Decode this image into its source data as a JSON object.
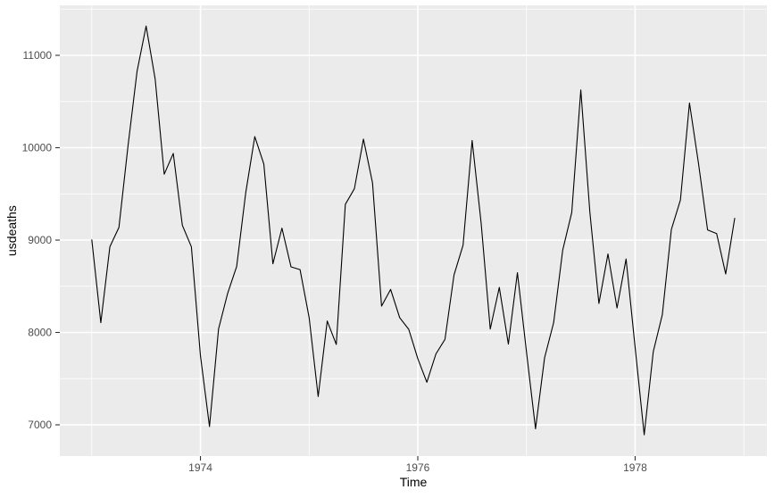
{
  "figure": {
    "x_axis_title": "Time",
    "y_axis_title": "usdeaths"
  },
  "chart_data": {
    "type": "line",
    "title": "",
    "xlabel": "Time",
    "ylabel": "usdeaths",
    "x_start": 1973,
    "x_frequency_per_year": 12,
    "series": [
      {
        "name": "usdeaths",
        "values": [
          9007,
          8106,
          8928,
          9137,
          10017,
          10826,
          11317,
          10744,
          9713,
          9938,
          9161,
          8927,
          7750,
          6981,
          8038,
          8422,
          8714,
          9512,
          10120,
          9823,
          8743,
          9129,
          8710,
          8680,
          8162,
          7306,
          8124,
          7870,
          9387,
          9556,
          10093,
          9620,
          8285,
          8466,
          8160,
          8034,
          7717,
          7461,
          7767,
          7925,
          8623,
          8945,
          10078,
          9179,
          8037,
          8488,
          7874,
          8647,
          7792,
          6957,
          7726,
          8106,
          8890,
          9299,
          10625,
          9302,
          8314,
          8850,
          8265,
          8796,
          7836,
          6892,
          7791,
          8192,
          9115,
          9434,
          10484,
          9827,
          9110,
          9070,
          8633,
          9240
        ]
      }
    ],
    "x_ticks": [
      {
        "t": 1974,
        "label": "1974"
      },
      {
        "t": 1976,
        "label": "1976"
      },
      {
        "t": 1978,
        "label": "1978"
      }
    ],
    "y_ticks": [
      {
        "v": 7000,
        "label": "7000"
      },
      {
        "v": 8000,
        "label": "8000"
      },
      {
        "v": 9000,
        "label": "9000"
      },
      {
        "v": 10000,
        "label": "10000"
      },
      {
        "v": 11000,
        "label": "11000"
      }
    ],
    "x_minor": [
      1973,
      1975,
      1977,
      1979
    ],
    "y_minor": [
      7500,
      8500,
      9500,
      10500,
      11500
    ],
    "xlim": [
      1972.706,
      1979.212
    ],
    "ylim": [
      6662,
      11541
    ],
    "grid": true,
    "legend": "none",
    "colors": {
      "line": "#000000",
      "panel_bg": "#EBEBEB",
      "grid_major": "#FFFFFF",
      "grid_minor": "#FFFFFF",
      "tick_label": "#4D4D4D",
      "tick_mark": "#333333",
      "axis_title": "#000000",
      "background": "#FFFFFF"
    }
  }
}
